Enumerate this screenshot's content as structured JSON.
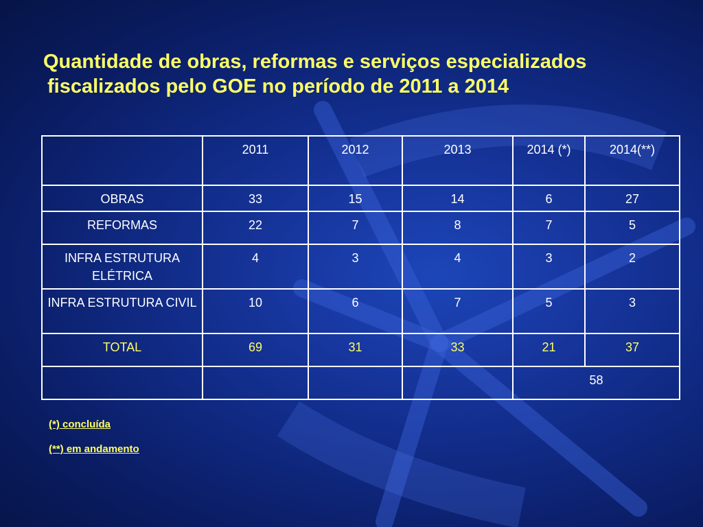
{
  "slide": {
    "title_line1": "Quantidade de obras, reformas e serviços especializados",
    "title_line2": "fiscalizados pelo GOE no período de 2011 a 2014"
  },
  "table": {
    "headers": [
      "",
      "2011",
      "2012",
      "2013",
      "2014 (*)",
      "2014(**)"
    ],
    "rows": [
      {
        "label": "OBRAS",
        "values": [
          "33",
          "15",
          "14",
          "6",
          "27"
        ]
      },
      {
        "label": "REFORMAS",
        "values": [
          "22",
          "7",
          "8",
          "7",
          "5"
        ]
      },
      {
        "label": "INFRA ESTRUTURA ELÉTRICA",
        "values": [
          "4",
          "3",
          "4",
          "3",
          "2"
        ]
      },
      {
        "label": "INFRA ESTRUTURA CIVIL",
        "values": [
          "10",
          "6",
          "7",
          "5",
          "3"
        ]
      },
      {
        "label": "TOTAL",
        "values": [
          "69",
          "31",
          "33",
          "21",
          "37"
        ]
      }
    ],
    "combined_2014_total": "58"
  },
  "notes": {
    "note1": "(*) concluída",
    "note2": "(**) em andamento"
  },
  "colors": {
    "title": "#ffff66",
    "background": "#102a84",
    "table_text": "#ffffff",
    "total_label": "#ffff66"
  }
}
